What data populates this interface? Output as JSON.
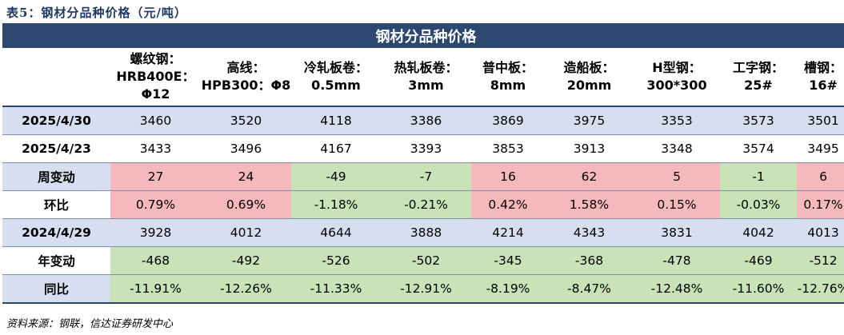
{
  "caption": "表5：钢材分品种价格（元/吨）",
  "table_title": "钢材分品种价格",
  "columns": [
    "螺纹钢：HRB400E：Φ12",
    "高线：HPB300：Φ8",
    "冷轧板卷：0.5mm",
    "热轧板卷：3mm",
    "普中板：8mm",
    "造船板：20mm",
    "H型钢：300*300",
    "工字钢：25#",
    "槽钢：16#"
  ],
  "rows": [
    {
      "label": "2025/4/30",
      "style": "blue",
      "values": [
        "3460",
        "3520",
        "4118",
        "3386",
        "3869",
        "3975",
        "3353",
        "3573",
        "3501"
      ],
      "shade": []
    },
    {
      "label": "2025/4/23",
      "style": "white",
      "values": [
        "3433",
        "3496",
        "4167",
        "3393",
        "3853",
        "3913",
        "3348",
        "3574",
        "3495"
      ],
      "shade": []
    },
    {
      "label": "周变动",
      "style": "blue",
      "values": [
        "27",
        "24",
        "-49",
        "-7",
        "16",
        "62",
        "5",
        "-1",
        "6"
      ],
      "shade": [
        "pos",
        "pos",
        "neg",
        "neg",
        "pos",
        "pos",
        "pos",
        "neg",
        "pos"
      ]
    },
    {
      "label": "环比",
      "style": "white",
      "values": [
        "0.79%",
        "0.69%",
        "-1.18%",
        "-0.21%",
        "0.42%",
        "1.58%",
        "0.15%",
        "-0.03%",
        "0.17%"
      ],
      "shade": [
        "pos",
        "pos",
        "neg",
        "neg",
        "pos",
        "pos",
        "pos",
        "neg",
        "pos"
      ]
    },
    {
      "label": "2024/4/29",
      "style": "blue",
      "values": [
        "3928",
        "4012",
        "4644",
        "3888",
        "4214",
        "4343",
        "3831",
        "4042",
        "4013"
      ],
      "shade": []
    },
    {
      "label": "年变动",
      "style": "white",
      "values": [
        "-468",
        "-492",
        "-526",
        "-502",
        "-345",
        "-368",
        "-478",
        "-469",
        "-512"
      ],
      "shade": [
        "neg",
        "neg",
        "neg",
        "neg",
        "neg",
        "neg",
        "neg",
        "neg",
        "neg"
      ]
    },
    {
      "label": "同比",
      "style": "blue",
      "values": [
        "-11.91%",
        "-12.26%",
        "-11.33%",
        "-12.91%",
        "-8.19%",
        "-8.47%",
        "-12.48%",
        "-11.60%",
        "-12.76%"
      ],
      "shade": [
        "neg",
        "neg",
        "neg",
        "neg",
        "neg",
        "neg",
        "neg",
        "neg",
        "neg"
      ]
    }
  ],
  "colors": {
    "header_bg": "#2c4770",
    "row_blue": "#d6dff0",
    "positive": "#f4b8bd",
    "negative": "#c9e2b8",
    "caption": "#1f3864"
  },
  "source": "资料来源：钢联，信达证券研发中心"
}
